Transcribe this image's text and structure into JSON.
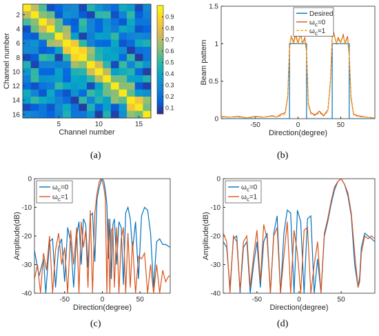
{
  "chart_data": [
    {
      "id": "a",
      "type": "heatmap",
      "caption": "(a)",
      "xlabel": "Channel number",
      "ylabel": "Channel number",
      "xticks": [
        5,
        10,
        15
      ],
      "yticks": [
        2,
        4,
        6,
        8,
        10,
        12,
        14,
        16
      ],
      "colorbar_ticks": [
        "0.1",
        "0.2",
        "0.3",
        "0.4",
        "0.5",
        "0.6",
        "0.7",
        "0.8",
        "0.9"
      ],
      "colorbar_range": [
        0.05,
        1.0
      ],
      "colormap": "parula",
      "matrix_seed": 7
    },
    {
      "id": "b",
      "type": "line",
      "caption": "(b)",
      "xlabel": "Direction(degree)",
      "ylabel": "Beam pattern",
      "xlim": [
        -90,
        90
      ],
      "ylim": [
        0,
        1.5
      ],
      "xticks": [
        "-50",
        "0",
        "50"
      ],
      "yticks": [
        "0",
        "0.5",
        "1",
        "1.5"
      ],
      "legend": [
        "Desired",
        "ω_c=0",
        "ω_c=1"
      ],
      "legend_position": "top-right",
      "series": [
        {
          "name": "Desired",
          "color": "#0072BD",
          "x": [
            -90,
            -10,
            -10,
            10,
            10,
            40,
            40,
            60,
            60,
            90
          ],
          "y": [
            0,
            0,
            1,
            1,
            0,
            0,
            1,
            1,
            0,
            0
          ]
        },
        {
          "name": "ω_c=0",
          "color": "#D95319",
          "x": [
            -90,
            -80,
            -70,
            -60,
            -50,
            -40,
            -30,
            -25,
            -20,
            -15,
            -12,
            -10,
            -8,
            -5,
            -3,
            0,
            3,
            5,
            8,
            10,
            12,
            15,
            20,
            25,
            30,
            35,
            38,
            40,
            42,
            45,
            47,
            50,
            53,
            55,
            58,
            60,
            62,
            65,
            70,
            75,
            80,
            90
          ],
          "y": [
            0.03,
            0.02,
            0.03,
            0.01,
            0.03,
            0.02,
            0.04,
            0.02,
            0.06,
            0.08,
            0.3,
            0.95,
            1.1,
            1.02,
            1.14,
            1.0,
            1.15,
            1.0,
            1.08,
            0.9,
            0.2,
            0.08,
            0.05,
            0.1,
            0.04,
            0.12,
            0.5,
            1.1,
            1.14,
            1.0,
            1.08,
            1.02,
            1.12,
            1.0,
            1.1,
            0.85,
            0.3,
            0.06,
            0.04,
            0.03,
            0.02,
            0.01
          ]
        },
        {
          "name": "ω_c=1",
          "color": "#EDB120",
          "x": [
            -90,
            -80,
            -70,
            -60,
            -50,
            -40,
            -30,
            -25,
            -20,
            -15,
            -12,
            -10,
            -8,
            -5,
            -3,
            0,
            3,
            5,
            8,
            10,
            12,
            15,
            20,
            25,
            30,
            35,
            38,
            40,
            42,
            45,
            47,
            50,
            53,
            55,
            58,
            60,
            62,
            65,
            70,
            75,
            80,
            90
          ],
          "y": [
            0.02,
            0.02,
            0.02,
            0.01,
            0.02,
            0.02,
            0.03,
            0.02,
            0.04,
            0.06,
            0.28,
            0.93,
            1.08,
            1.0,
            1.1,
            0.99,
            1.12,
            1.0,
            1.05,
            0.88,
            0.18,
            0.06,
            0.04,
            0.08,
            0.03,
            0.1,
            0.48,
            1.08,
            1.12,
            1.0,
            1.06,
            1.01,
            1.1,
            1.0,
            1.07,
            0.82,
            0.27,
            0.05,
            0.03,
            0.02,
            0.02,
            0.01
          ]
        }
      ]
    },
    {
      "id": "c",
      "type": "line",
      "caption": "(c)",
      "xlabel": "Direction(degree)",
      "ylabel": "Amplitude(dB)",
      "xlim": [
        -90,
        90
      ],
      "ylim": [
        -40,
        0
      ],
      "xticks": [
        "-50",
        "0",
        "50"
      ],
      "yticks": [
        "-40",
        "-30",
        "-20",
        "-10",
        "0"
      ],
      "legend": [
        "ω_c=0",
        "ω_c=1"
      ],
      "legend_position": "top-left",
      "series": [
        {
          "name": "ω_c=0",
          "color": "#0072BD",
          "x": [
            -90,
            -84,
            -78,
            -75,
            -70,
            -66,
            -62,
            -58,
            -54,
            -50,
            -46,
            -42,
            -38,
            -34,
            -31,
            -28,
            -25,
            -22,
            -19,
            -16,
            -13,
            -10,
            -7,
            -4,
            -2,
            0,
            2,
            4,
            6,
            8,
            10,
            12,
            14,
            16,
            19,
            22,
            25,
            28,
            31,
            34,
            37,
            40,
            44,
            48,
            52,
            56,
            60,
            64,
            68,
            72,
            76,
            80,
            84,
            90
          ],
          "y": [
            -25,
            -34,
            -28,
            -40,
            -22,
            -21,
            -38,
            -24,
            -21,
            -36,
            -17,
            -22,
            -38,
            -20,
            -15,
            -30,
            -14,
            -16,
            -31,
            -13,
            -12,
            -29,
            -7,
            -3,
            -1,
            0,
            -1,
            -4,
            -9,
            -28,
            -14,
            -35,
            -16,
            -14,
            -30,
            -15,
            -17,
            -37,
            -12,
            -10,
            -14,
            -25,
            -15,
            -35,
            -13,
            -10,
            -11,
            -19,
            -38,
            -22,
            -21,
            -23,
            -23,
            -24
          ]
        },
        {
          "name": "ω_c=1",
          "color": "#D95319",
          "x": [
            -90,
            -86,
            -82,
            -78,
            -74,
            -70,
            -66,
            -62,
            -58,
            -54,
            -50,
            -46,
            -42,
            -38,
            -34,
            -31,
            -28,
            -25,
            -22,
            -19,
            -16,
            -13,
            -10,
            -7,
            -4,
            -2,
            0,
            2,
            4,
            6,
            8,
            10,
            12,
            14,
            16,
            19,
            22,
            25,
            28,
            31,
            34,
            37,
            40,
            44,
            48,
            52,
            56,
            60,
            64,
            68,
            72,
            76,
            80,
            84,
            88,
            90
          ],
          "y": [
            -35,
            -30,
            -40,
            -26,
            -32,
            -20,
            -40,
            -25,
            -19,
            -30,
            -24,
            -40,
            -18,
            -30,
            -17,
            -40,
            -15,
            -24,
            -18,
            -38,
            -11,
            -40,
            -12,
            -5,
            -1,
            0,
            -1,
            -3,
            -7,
            -40,
            -14,
            -40,
            -18,
            -17,
            -38,
            -17,
            -40,
            -21,
            -17,
            -40,
            -19,
            -38,
            -22,
            -40,
            -27,
            -28,
            -26,
            -40,
            -30,
            -40,
            -30,
            -40,
            -32,
            -36,
            -34,
            -34
          ]
        }
      ]
    },
    {
      "id": "d",
      "type": "line",
      "caption": "(d)",
      "xlabel": "Direction(degree)",
      "ylabel": "Amplitude(dB)",
      "xlim": [
        -90,
        90
      ],
      "ylim": [
        -40,
        0
      ],
      "xticks": [
        "-50",
        "0",
        "50"
      ],
      "yticks": [
        "-40",
        "-30",
        "-20",
        "-10",
        "0"
      ],
      "legend": [
        "ω_c=0",
        "ω_c=1"
      ],
      "legend_position": "top-left",
      "series": [
        {
          "name": "ω_c=0",
          "color": "#0072BD",
          "x": [
            -90,
            -86,
            -82,
            -78,
            -74,
            -70,
            -66,
            -62,
            -58,
            -54,
            -50,
            -46,
            -42,
            -38,
            -34,
            -30,
            -26,
            -22,
            -18,
            -14,
            -10,
            -6,
            -2,
            2,
            6,
            10,
            14,
            18,
            22,
            26,
            30,
            34,
            38,
            42,
            46,
            50,
            54,
            58,
            62,
            66,
            70,
            72,
            74,
            78,
            82,
            86,
            90
          ],
          "y": [
            -22,
            -24,
            -38,
            -21,
            -20,
            -40,
            -24,
            -22,
            -40,
            -30,
            -22,
            -38,
            -22,
            -19,
            -40,
            -19,
            -13,
            -40,
            -19,
            -11,
            -12,
            -40,
            -11,
            -15,
            -40,
            -14,
            -13,
            -40,
            -28,
            -40,
            -20,
            -15,
            -9,
            -4,
            -1,
            0,
            -2,
            -6,
            -13,
            -30,
            -38,
            -34,
            -24,
            -19,
            -20,
            -21,
            -22
          ]
        },
        {
          "name": "ω_c=1",
          "color": "#D95319",
          "x": [
            -90,
            -86,
            -82,
            -78,
            -74,
            -70,
            -66,
            -62,
            -58,
            -54,
            -50,
            -46,
            -42,
            -38,
            -34,
            -30,
            -26,
            -22,
            -18,
            -14,
            -10,
            -6,
            -2,
            2,
            6,
            10,
            14,
            18,
            22,
            26,
            30,
            34,
            38,
            42,
            46,
            50,
            54,
            58,
            62,
            66,
            70,
            72,
            74,
            78,
            82,
            86,
            90
          ],
          "y": [
            -19,
            -22,
            -40,
            -20,
            -22,
            -39,
            -22,
            -20,
            -38,
            -27,
            -18,
            -36,
            -16,
            -21,
            -40,
            -20,
            -17,
            -40,
            -27,
            -15,
            -40,
            -18,
            -26,
            -40,
            -18,
            -17,
            -40,
            -30,
            -22,
            -40,
            -19,
            -14,
            -8,
            -3,
            -1,
            0,
            -2,
            -5,
            -12,
            -26,
            -38,
            -36,
            -26,
            -20,
            -21,
            -20,
            -21
          ]
        }
      ]
    }
  ]
}
